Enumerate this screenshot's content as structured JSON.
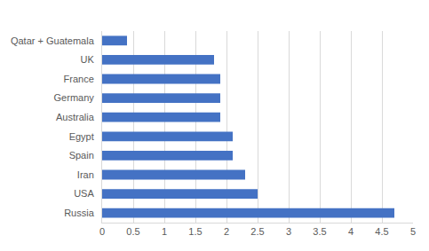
{
  "chart_data": {
    "type": "bar",
    "orientation": "horizontal",
    "categories": [
      "Russia",
      "USA",
      "Iran",
      "Spain",
      "Egypt",
      "Australia",
      "Germany",
      "France",
      "UK",
      "Qatar + Guatemala"
    ],
    "values": [
      4.7,
      2.5,
      2.3,
      2.1,
      2.1,
      1.9,
      1.9,
      1.9,
      1.8,
      0.4
    ],
    "color": "#4472c4",
    "xlim": [
      0,
      5
    ],
    "xticks": [
      0,
      0.5,
      1,
      1.5,
      2,
      2.5,
      3,
      3.5,
      4,
      4.5,
      5
    ],
    "grid": true
  }
}
